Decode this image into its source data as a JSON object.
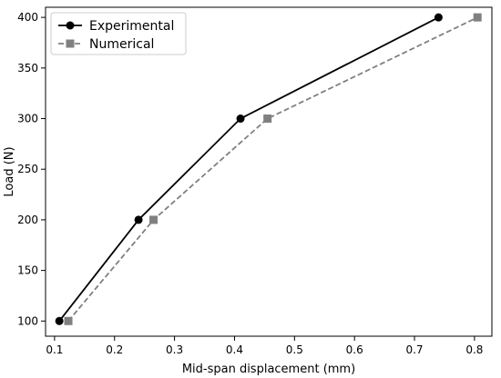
{
  "chart_data": {
    "type": "line",
    "title": "",
    "xlabel": "Mid-span displacement (mm)",
    "ylabel": "Load (N)",
    "xlim": [
      0.085,
      0.829
    ],
    "ylim": [
      85,
      410
    ],
    "grid": false,
    "legend_position": "top-left",
    "x_ticks": [
      0.1,
      0.2,
      0.3,
      0.4,
      0.5,
      0.6,
      0.7,
      0.8
    ],
    "x_tick_labels": [
      "0.1",
      "0.2",
      "0.3",
      "0.4",
      "0.5",
      "0.6",
      "0.7",
      "0.8"
    ],
    "y_ticks": [
      100,
      150,
      200,
      250,
      300,
      350,
      400
    ],
    "y_tick_labels": [
      "100",
      "150",
      "200",
      "250",
      "300",
      "350",
      "400"
    ],
    "series": [
      {
        "name": "Experimental",
        "color": "#000000",
        "line_style": "solid",
        "marker": "circle",
        "x": [
          0.108,
          0.24,
          0.41,
          0.74
        ],
        "y": [
          100,
          200,
          300,
          400
        ]
      },
      {
        "name": "Numerical",
        "color": "#808080",
        "line_style": "dashed",
        "marker": "square",
        "x": [
          0.123,
          0.265,
          0.455,
          0.805
        ],
        "y": [
          100,
          200,
          300,
          400
        ]
      }
    ]
  }
}
